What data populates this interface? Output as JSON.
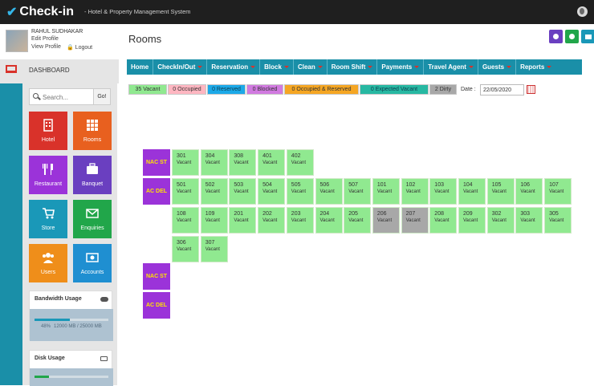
{
  "app": {
    "logo": "Check-in",
    "tagline": "- Hotel & Property Management System"
  },
  "profile": {
    "name": "RAHUL SUDHAKAR",
    "edit": "Edit Profile",
    "view": "View Profile",
    "logout": "Logout"
  },
  "sidebar": {
    "dashboard": "DASHBOARD",
    "search_placeholder": "Search...",
    "go": "Go!",
    "tiles": [
      {
        "label": "Hotel",
        "color": "#d9322a",
        "icon": "building-icon"
      },
      {
        "label": "Rooms",
        "color": "#e8601f",
        "icon": "grid-icon"
      },
      {
        "label": "Restaurant",
        "color": "#9b33d9",
        "icon": "cutlery-icon"
      },
      {
        "label": "Banquet",
        "color": "#6a3fc0",
        "icon": "briefcase-icon"
      },
      {
        "label": "Store",
        "color": "#1a98b8",
        "icon": "cart-icon"
      },
      {
        "label": "Enquiries",
        "color": "#21a64a",
        "icon": "mail-icon"
      },
      {
        "label": "Users",
        "color": "#ef8e1a",
        "icon": "users-icon"
      },
      {
        "label": "Accounts",
        "color": "#1f8fd1",
        "icon": "money-icon"
      }
    ],
    "bandwidth": {
      "title": "Bandwidth Usage",
      "percent": "48%",
      "detail": "12000 MB / 25000 MB",
      "fill": 0.48
    },
    "disk": {
      "title": "Disk Usage",
      "fill": 0.2
    }
  },
  "page": {
    "title": "Rooms"
  },
  "actions": [
    {
      "name": "user-icon",
      "color": "#6a3fc0"
    },
    {
      "name": "settings-icon",
      "color": "#21a64a"
    },
    {
      "name": "logout-icon",
      "color": "#1a98b8"
    }
  ],
  "nav": [
    "Home",
    "CheckIn/Out",
    "Reservation",
    "Block",
    "Clean",
    "Room Shift",
    "Payments",
    "Travel Agent",
    "Guests",
    "Reports"
  ],
  "legend": [
    {
      "label": "35 Vacant",
      "color": "#90e990"
    },
    {
      "label": "0 Occupied",
      "color": "#ffb6c1"
    },
    {
      "label": "0 Reserved",
      "color": "#1ca9e8"
    },
    {
      "label": "0 Blocked",
      "color": "#d17ae0"
    },
    {
      "label": "0 Occupied & Reserved",
      "color": "#f5a623"
    },
    {
      "label": "0 Expected Vacant",
      "color": "#27b8a2"
    },
    {
      "label": "2 Dirty",
      "color": "#a8a8a8"
    }
  ],
  "date": {
    "label": "Date :",
    "value": "22/05/2020"
  },
  "room_types": [
    "NAC ST",
    "AC DEL",
    "NAC ST",
    "AC DEL"
  ],
  "rooms_row1": [
    {
      "num": "301",
      "status": "Vacant"
    },
    {
      "num": "304",
      "status": "Vacant"
    },
    {
      "num": "308",
      "status": "Vacant"
    },
    {
      "num": "401",
      "status": "Vacant"
    },
    {
      "num": "402",
      "status": "Vacant"
    }
  ],
  "rooms_row2": [
    {
      "num": "501",
      "status": "Vacant"
    },
    {
      "num": "502",
      "status": "Vacant"
    },
    {
      "num": "503",
      "status": "Vacant"
    },
    {
      "num": "504",
      "status": "Vacant"
    },
    {
      "num": "505",
      "status": "Vacant"
    },
    {
      "num": "506",
      "status": "Vacant"
    },
    {
      "num": "507",
      "status": "Vacant"
    },
    {
      "num": "101",
      "status": "Vacant"
    },
    {
      "num": "102",
      "status": "Vacant"
    },
    {
      "num": "103",
      "status": "Vacant"
    },
    {
      "num": "104",
      "status": "Vacant"
    },
    {
      "num": "105",
      "status": "Vacant"
    },
    {
      "num": "106",
      "status": "Vacant"
    },
    {
      "num": "107",
      "status": "Vacant"
    }
  ],
  "rooms_row3": [
    {
      "num": "108",
      "status": "Vacant"
    },
    {
      "num": "109",
      "status": "Vacant"
    },
    {
      "num": "201",
      "status": "Vacant"
    },
    {
      "num": "202",
      "status": "Vacant"
    },
    {
      "num": "203",
      "status": "Vacant"
    },
    {
      "num": "204",
      "status": "Vacant"
    },
    {
      "num": "205",
      "status": "Vacant"
    },
    {
      "num": "206",
      "status": "Vacant",
      "dirty": true
    },
    {
      "num": "207",
      "status": "Vacant",
      "dirty": true
    },
    {
      "num": "208",
      "status": "Vacant"
    },
    {
      "num": "209",
      "status": "Vacant"
    },
    {
      "num": "302",
      "status": "Vacant"
    },
    {
      "num": "303",
      "status": "Vacant"
    },
    {
      "num": "305",
      "status": "Vacant"
    }
  ],
  "rooms_row4": [
    {
      "num": "306",
      "status": "Vacant"
    },
    {
      "num": "307",
      "status": "Vacant"
    }
  ]
}
